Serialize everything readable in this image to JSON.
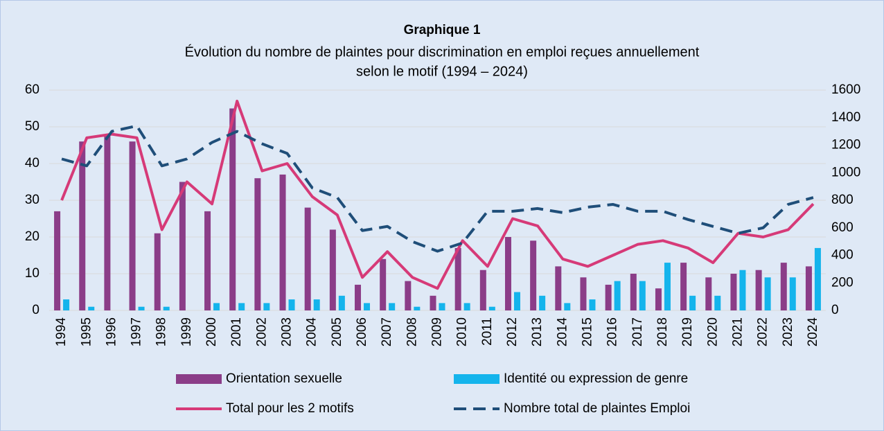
{
  "chart_data": {
    "type": "bar",
    "title": "Graphique 1",
    "subtitle": [
      "Évolution du nombre de plaintes pour discrimination en emploi reçues annuellement",
      "selon le motif (1994 – 2024)"
    ],
    "categories": [
      "1994",
      "1995",
      "1996",
      "1997",
      "1998",
      "1999",
      "2000",
      "2001",
      "2002",
      "2003",
      "2004",
      "2005",
      "2006",
      "2007",
      "2008",
      "2009",
      "2010",
      "2011",
      "2012",
      "2013",
      "2014",
      "2015",
      "2016",
      "2017",
      "2018",
      "2019",
      "2020",
      "2021",
      "2022",
      "2023",
      "2024"
    ],
    "series": [
      {
        "name": "Orientation sexuelle",
        "type": "bar",
        "color": "#8b3d88",
        "values": [
          27,
          46,
          48,
          46,
          21,
          35,
          27,
          55,
          36,
          37,
          28,
          22,
          7,
          14,
          8,
          4,
          17,
          11,
          20,
          19,
          12,
          9,
          7,
          10,
          6,
          13,
          9,
          10,
          11,
          13,
          12
        ]
      },
      {
        "name": "Identité ou expression de genre",
        "type": "bar",
        "color": "#14b4ec",
        "values": [
          3,
          1,
          0,
          1,
          1,
          0,
          2,
          2,
          2,
          3,
          3,
          4,
          2,
          2,
          1,
          2,
          2,
          1,
          5,
          4,
          2,
          3,
          8,
          8,
          13,
          4,
          4,
          11,
          9,
          9,
          17
        ]
      },
      {
        "name": "Total pour les 2 motifs",
        "type": "line",
        "color": "#d63a78",
        "dashed": false,
        "values": [
          30,
          47,
          48,
          47,
          22,
          35,
          29,
          57,
          38,
          40,
          31,
          26,
          9,
          16,
          9,
          6,
          19,
          12,
          25,
          23,
          14,
          12,
          15,
          18,
          19,
          17,
          13,
          21,
          20,
          22,
          29
        ]
      },
      {
        "name": "Nombre total de plaintes Emploi",
        "type": "line",
        "color": "#1f4e79",
        "dashed": true,
        "axis": "y2",
        "values": [
          1100,
          1050,
          1300,
          1340,
          1050,
          1100,
          1220,
          1300,
          1210,
          1140,
          890,
          820,
          580,
          610,
          500,
          430,
          490,
          720,
          720,
          740,
          710,
          750,
          770,
          720,
          720,
          660,
          610,
          560,
          600,
          770,
          820
        ]
      }
    ],
    "ylim": [
      0,
      60
    ],
    "yticks": [
      0,
      10,
      20,
      30,
      40,
      50,
      60
    ],
    "y2lim": [
      0,
      1600
    ],
    "y2ticks": [
      0,
      200,
      400,
      600,
      800,
      1000,
      1200,
      1400,
      1600
    ],
    "grid": true,
    "legend": "bottom"
  }
}
